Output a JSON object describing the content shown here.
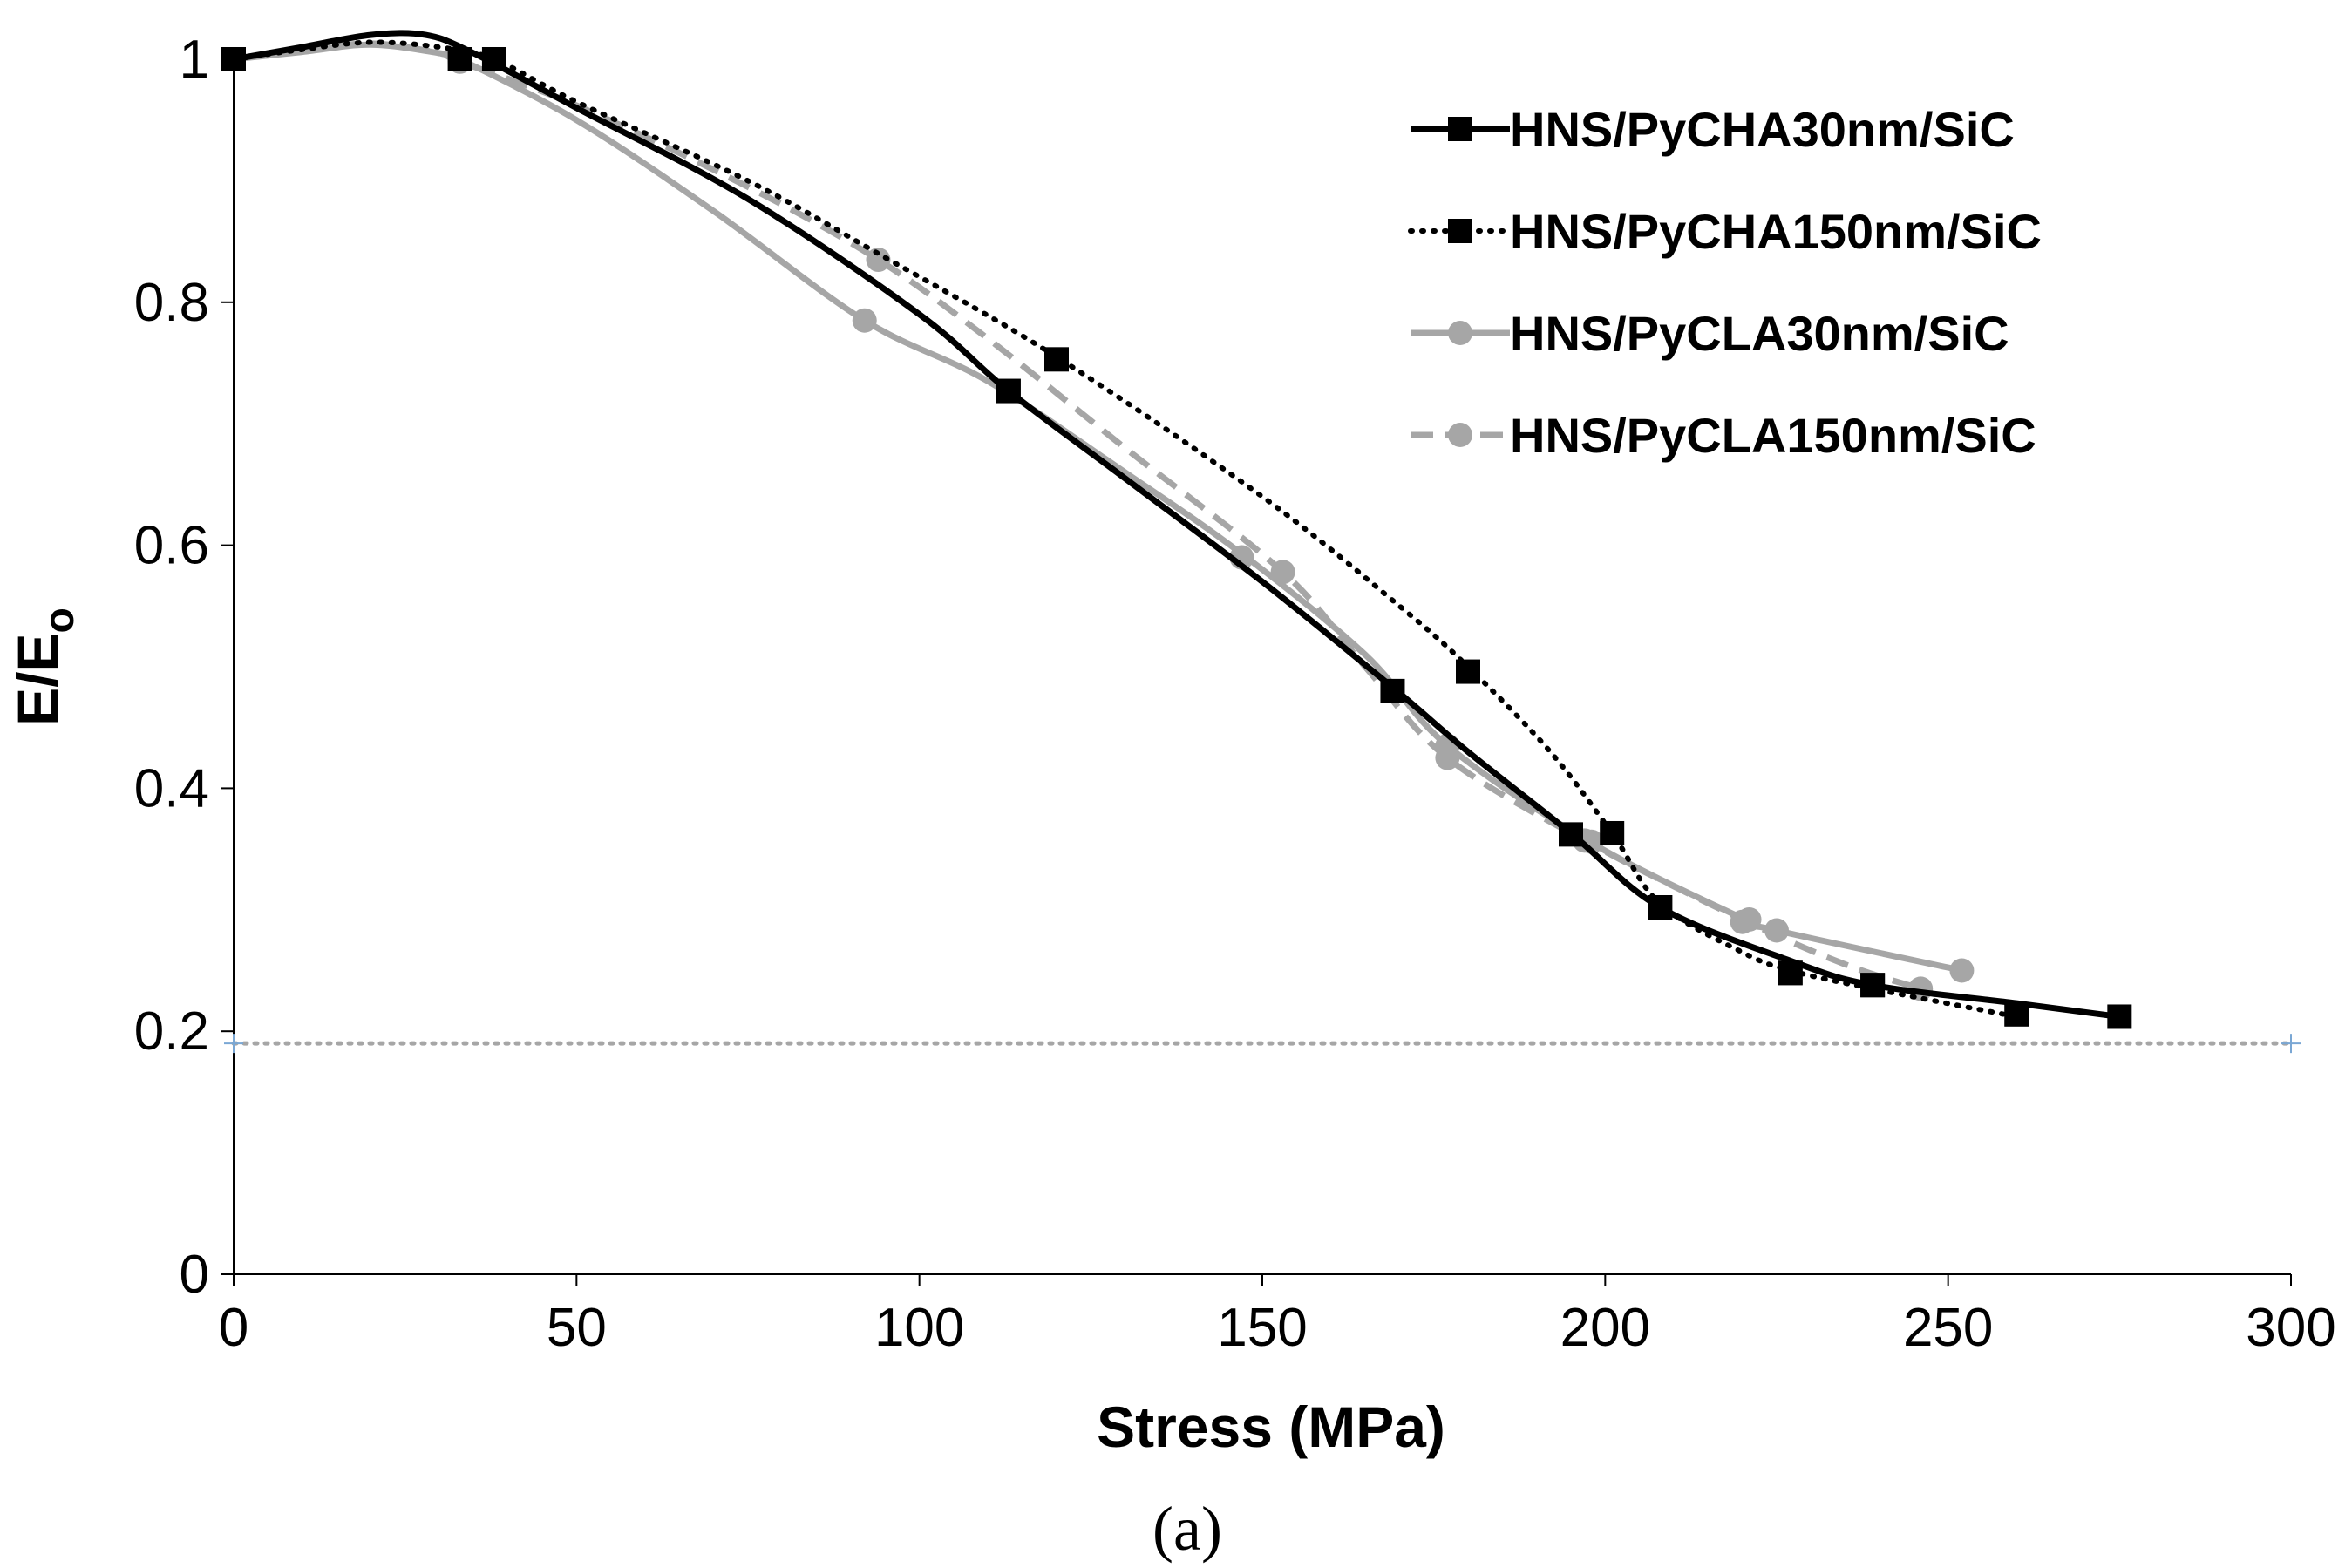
{
  "chart_data": {
    "type": "line",
    "title": "",
    "xlabel": "Stress (MPa)",
    "ylabel_main": "E/E",
    "ylabel_sub": "o",
    "caption": "(a)",
    "xlim": [
      0,
      300
    ],
    "ylim": [
      0,
      1
    ],
    "xticks": [
      0,
      50,
      100,
      150,
      200,
      250,
      300
    ],
    "yticks": [
      0,
      0.2,
      0.4,
      0.6,
      0.8,
      1
    ],
    "xtick_labels": [
      "0",
      "50",
      "100",
      "150",
      "200",
      "250",
      "300"
    ],
    "ytick_labels": [
      "0",
      "0.2",
      "0.4",
      "0.6",
      "0.8",
      "1"
    ],
    "grid": false,
    "legend_position": "top-right",
    "reference_line": {
      "y": 0.19,
      "x_range": [
        0,
        300
      ],
      "color": "#a6a6a6",
      "style": "dotted",
      "marker_color": "#7aa7d4"
    },
    "series": [
      {
        "name": "HNS/PyCHA30nm/SiC",
        "color": "#000000",
        "line_style": "solid",
        "marker": "square",
        "curve": [
          [
            0,
            1.0
          ],
          [
            10,
            1.01
          ],
          [
            20,
            1.02
          ],
          [
            28,
            1.02
          ],
          [
            35,
            1.005
          ],
          [
            50,
            0.96
          ],
          [
            75,
            0.885
          ],
          [
            100,
            0.79
          ],
          [
            113,
            0.727
          ],
          [
            130,
            0.655
          ],
          [
            150,
            0.57
          ],
          [
            169,
            0.483
          ],
          [
            180,
            0.43
          ],
          [
            195,
            0.363
          ],
          [
            208,
            0.302
          ],
          [
            227,
            0.258
          ],
          [
            239,
            0.238
          ],
          [
            260,
            0.223
          ],
          [
            275,
            0.212
          ]
        ],
        "points": [
          [
            0,
            1.0
          ],
          [
            33,
            1.0
          ],
          [
            113,
            0.727
          ],
          [
            169,
            0.48
          ],
          [
            195,
            0.362
          ],
          [
            208,
            0.302
          ],
          [
            227,
            0.248
          ],
          [
            239,
            0.238
          ],
          [
            260,
            0.214
          ],
          [
            275,
            0.212
          ]
        ]
      },
      {
        "name": "HNS/PyCHA150nm/SiC",
        "color": "#000000",
        "line_style": "dotted",
        "marker": "square",
        "curve": [
          [
            0,
            1.0
          ],
          [
            10,
            1.008
          ],
          [
            20,
            1.014
          ],
          [
            30,
            1.01
          ],
          [
            38,
            1.0
          ],
          [
            50,
            0.965
          ],
          [
            75,
            0.9
          ],
          [
            94,
            0.84
          ],
          [
            120,
            0.755
          ],
          [
            150,
            0.64
          ],
          [
            170,
            0.55
          ],
          [
            180,
            0.5
          ],
          [
            192,
            0.43
          ],
          [
            201,
            0.363
          ],
          [
            208,
            0.305
          ],
          [
            220,
            0.265
          ],
          [
            227,
            0.25
          ],
          [
            239,
            0.235
          ],
          [
            260,
            0.212
          ]
        ],
        "points": [
          [
            0,
            1.0
          ],
          [
            38,
            1.0
          ],
          [
            120,
            0.753
          ],
          [
            180,
            0.496
          ],
          [
            201,
            0.363
          ],
          [
            208,
            0.302
          ],
          [
            227,
            0.248
          ],
          [
            239,
            0.238
          ],
          [
            260,
            0.214
          ]
        ]
      },
      {
        "name": "HNS/PyCLA30nm/SiC",
        "color": "#a6a6a6",
        "line_style": "solid",
        "marker": "circle",
        "curve": [
          [
            0,
            1.0
          ],
          [
            10,
            1.006
          ],
          [
            20,
            1.012
          ],
          [
            30,
            1.005
          ],
          [
            33,
            1.0
          ],
          [
            50,
            0.95
          ],
          [
            70,
            0.875
          ],
          [
            92,
            0.785
          ],
          [
            110,
            0.735
          ],
          [
            130,
            0.66
          ],
          [
            147,
            0.593
          ],
          [
            165,
            0.51
          ],
          [
            177,
            0.435
          ],
          [
            198,
            0.355
          ],
          [
            220,
            0.293
          ],
          [
            225,
            0.283
          ],
          [
            252,
            0.25
          ]
        ],
        "points": [
          [
            0,
            1.0
          ],
          [
            33,
            1.0
          ],
          [
            92,
            0.785
          ],
          [
            147,
            0.59
          ],
          [
            177,
            0.435
          ],
          [
            198,
            0.356
          ],
          [
            221,
            0.292
          ],
          [
            225,
            0.283
          ],
          [
            252,
            0.25
          ]
        ]
      },
      {
        "name": "HNS/PyCLA150nm/SiC",
        "color": "#a6a6a6",
        "line_style": "dashed",
        "marker": "circle",
        "curve": [
          [
            0,
            1.0
          ],
          [
            10,
            1.007
          ],
          [
            20,
            1.013
          ],
          [
            30,
            1.005
          ],
          [
            33,
            0.998
          ],
          [
            50,
            0.962
          ],
          [
            75,
            0.895
          ],
          [
            94,
            0.835
          ],
          [
            110,
            0.77
          ],
          [
            130,
            0.68
          ],
          [
            153,
            0.578
          ],
          [
            165,
            0.5
          ],
          [
            177,
            0.425
          ],
          [
            197,
            0.357
          ],
          [
            220,
            0.292
          ],
          [
            235,
            0.255
          ],
          [
            246,
            0.235
          ]
        ],
        "points": [
          [
            0,
            1.0
          ],
          [
            33,
            0.998
          ],
          [
            94,
            0.835
          ],
          [
            153,
            0.578
          ],
          [
            177,
            0.425
          ],
          [
            197,
            0.357
          ],
          [
            220,
            0.29
          ],
          [
            246,
            0.235
          ]
        ]
      }
    ]
  }
}
